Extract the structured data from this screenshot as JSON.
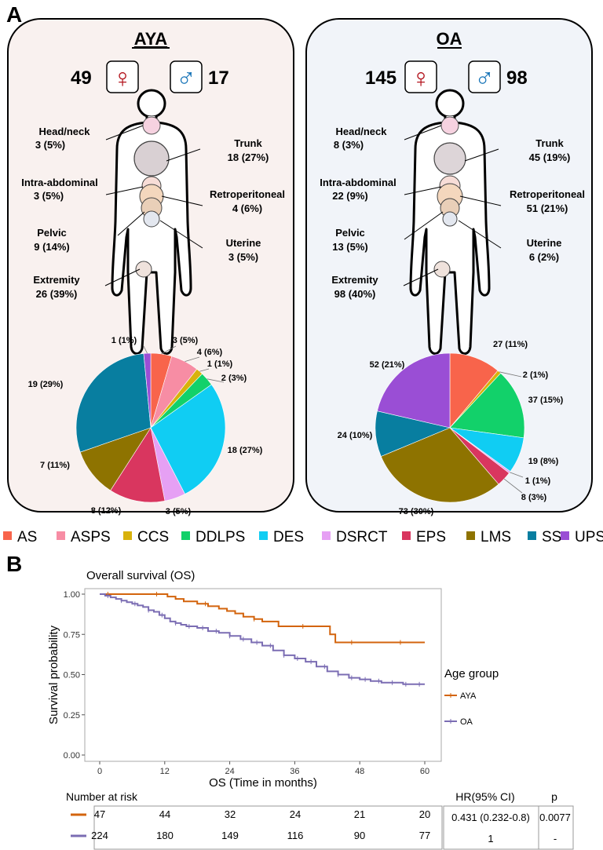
{
  "panel_a": {
    "letter": "A",
    "aya": {
      "title": "AYA",
      "female_count": "49",
      "male_count": "17",
      "female_symbol": "♀",
      "male_symbol": "♂",
      "sites": [
        {
          "name": "Head/neck",
          "value": "3 (5%)"
        },
        {
          "name": "Trunk",
          "value": "18 (27%)"
        },
        {
          "name": "Intra-abdominal",
          "value": "3 (5%)"
        },
        {
          "name": "Retroperitoneal",
          "value": "4 (6%)"
        },
        {
          "name": "Pelvic",
          "value": "9 (14%)"
        },
        {
          "name": "Uterine",
          "value": "3 (5%)"
        },
        {
          "name": "Extremity",
          "value": "26 (39%)"
        }
      ]
    },
    "oa": {
      "title": "OA",
      "female_count": "145",
      "male_count": "98",
      "female_symbol": "♀",
      "male_symbol": "♂",
      "sites": [
        {
          "name": "Head/neck",
          "value": "8 (3%)"
        },
        {
          "name": "Trunk",
          "value": "45 (19%)"
        },
        {
          "name": "Intra-abdominal",
          "value": "22 (9%)"
        },
        {
          "name": "Retroperitoneal",
          "value": "51 (21%)"
        },
        {
          "name": "Pelvic",
          "value": "13 (5%)"
        },
        {
          "name": "Uterine",
          "value": "6 (2%)"
        },
        {
          "name": "Extremity",
          "value": "98 (40%)"
        }
      ]
    },
    "legend": [
      {
        "name": "AS",
        "color": "#f8644b"
      },
      {
        "name": "ASPS",
        "color": "#f78da4"
      },
      {
        "name": "CCS",
        "color": "#d8b20c"
      },
      {
        "name": "DDLPS",
        "color": "#12d16a"
      },
      {
        "name": "DES",
        "color": "#10cdf3"
      },
      {
        "name": "DSRCT",
        "color": "#e6a0f4"
      },
      {
        "name": "EPS",
        "color": "#d9365f"
      },
      {
        "name": "LMS",
        "color": "#8e7300"
      },
      {
        "name": "SS",
        "color": "#087ea0"
      },
      {
        "name": "UPS",
        "color": "#9a4ed5"
      }
    ],
    "colors": {
      "aya_bg": "#f9f1ef",
      "oa_bg": "#f1f4f9",
      "female": "#b3131c",
      "male": "#1673b7"
    }
  },
  "panel_b": {
    "letter": "B",
    "risk_title": "Number at risk",
    "hr_header": "HR(95% CI)",
    "p_header": "p",
    "risk_rows": [
      {
        "color": "#d3640d",
        "counts": [
          "47",
          "44",
          "32",
          "24",
          "21",
          "20"
        ],
        "hr": "0.431 (0.232-0.8)",
        "p": "0.0077"
      },
      {
        "color": "#7b6db3",
        "counts": [
          "224",
          "180",
          "149",
          "116",
          "90",
          "77"
        ],
        "hr": "1",
        "p": "-"
      }
    ]
  },
  "chart_data": [
    {
      "type": "pie",
      "group": "AYA",
      "labels": [
        "AS",
        "ASPS",
        "CCS",
        "DDLPS",
        "DES",
        "DSRCT",
        "EPS",
        "LMS",
        "SS",
        "UPS"
      ],
      "values": [
        3,
        4,
        1,
        2,
        18,
        3,
        8,
        7,
        19,
        1
      ],
      "slice_labels": [
        "3 (5%)",
        "4 (6%)",
        "1 (1%)",
        "2 (3%)",
        "18 (27%)",
        "3 (5%)",
        "8 (12%)",
        "7 (11%)",
        "19 (29%)",
        "1 (1%)"
      ],
      "colors": [
        "#f8644b",
        "#f78da4",
        "#d8b20c",
        "#12d16a",
        "#10cdf3",
        "#e6a0f4",
        "#d9365f",
        "#8e7300",
        "#087ea0",
        "#9a4ed5"
      ]
    },
    {
      "type": "pie",
      "group": "OA",
      "labels": [
        "AS",
        "ASPS",
        "CCS",
        "DDLPS",
        "DES",
        "DSRCT",
        "EPS",
        "LMS",
        "SS",
        "UPS"
      ],
      "values": [
        27,
        0,
        2,
        37,
        19,
        1,
        8,
        73,
        24,
        52
      ],
      "slice_labels": [
        "27 (11%)",
        "",
        "2 (1%)",
        "37 (15%)",
        "19 (8%)",
        "1 (1%)",
        "8 (3%)",
        "73 (30%)",
        "24 (10%)",
        "52 (21%)"
      ],
      "colors": [
        "#f8644b",
        "#f78da4",
        "#d8b20c",
        "#12d16a",
        "#10cdf3",
        "#e6a0f4",
        "#d9365f",
        "#8e7300",
        "#087ea0",
        "#9a4ed5"
      ]
    },
    {
      "type": "line",
      "title": "Overall survival (OS)",
      "xlabel": "OS (Time in months)",
      "ylabel": "Survival probability",
      "xlim": [
        0,
        60
      ],
      "ylim": [
        0,
        1
      ],
      "xticks": [
        0,
        12,
        24,
        36,
        48,
        60
      ],
      "yticks": [
        "0.00",
        "0.25",
        "0.50",
        "0.75",
        "1.00"
      ],
      "legend_title": "Age group",
      "grid": false,
      "series": [
        {
          "name": "AYA",
          "color": "#d3640d",
          "x": [
            0,
            12.5,
            14,
            15.5,
            18,
            20,
            22,
            23.5,
            25,
            26.5,
            28.5,
            30,
            33,
            42.5,
            43.5,
            60
          ],
          "y": [
            1.0,
            0.985,
            0.97,
            0.955,
            0.94,
            0.925,
            0.91,
            0.895,
            0.88,
            0.86,
            0.845,
            0.83,
            0.8,
            0.75,
            0.7,
            0.7
          ]
        },
        {
          "name": "OA",
          "color": "#7b6db3",
          "x": [
            0,
            1,
            2,
            3,
            4,
            5,
            6,
            7,
            8,
            9,
            10,
            11,
            12,
            13,
            14,
            15,
            16,
            18,
            20,
            22,
            24,
            26,
            28,
            30,
            32,
            34,
            36,
            38,
            40,
            42,
            44,
            46,
            48,
            50,
            52,
            54,
            56,
            58,
            60
          ],
          "y": [
            1.0,
            0.99,
            0.98,
            0.97,
            0.96,
            0.95,
            0.94,
            0.93,
            0.92,
            0.9,
            0.89,
            0.87,
            0.85,
            0.83,
            0.82,
            0.81,
            0.8,
            0.79,
            0.77,
            0.76,
            0.74,
            0.72,
            0.7,
            0.68,
            0.65,
            0.62,
            0.6,
            0.58,
            0.55,
            0.52,
            0.5,
            0.48,
            0.47,
            0.46,
            0.45,
            0.45,
            0.44,
            0.44,
            0.44
          ]
        }
      ]
    }
  ]
}
